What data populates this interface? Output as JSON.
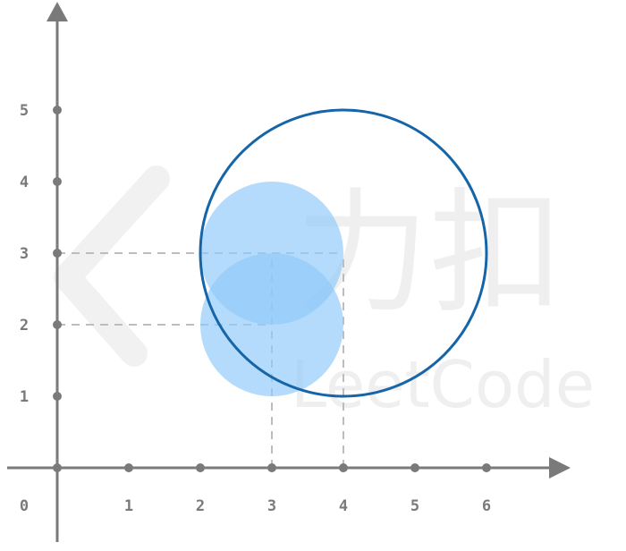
{
  "chart_data": {
    "type": "scatter",
    "x_ticks": [
      "0",
      "1",
      "2",
      "3",
      "4",
      "5",
      "6"
    ],
    "y_ticks": [
      "1",
      "2",
      "3",
      "4",
      "5"
    ],
    "x_range": [
      0,
      7
    ],
    "y_range": [
      0,
      6
    ],
    "filled_circles": [
      {
        "center": [
          3,
          3
        ],
        "radius": 1,
        "color": "#90caf9"
      },
      {
        "center": [
          3,
          2
        ],
        "radius": 1,
        "color": "#90caf9"
      }
    ],
    "outline_circle": {
      "center": [
        4,
        3
      ],
      "radius": 2,
      "color": "#1565a8"
    },
    "dashed_guides": [
      {
        "from": [
          0,
          3
        ],
        "to": [
          4,
          3
        ]
      },
      {
        "from": [
          0,
          2
        ],
        "to": [
          3,
          2
        ]
      },
      {
        "from": [
          3,
          0
        ],
        "to": [
          3,
          3
        ]
      },
      {
        "from": [
          4,
          0
        ],
        "to": [
          4,
          3
        ]
      }
    ],
    "axis_color": "#7a7a7a",
    "guide_color": "#bdbdbd"
  },
  "watermark": {
    "cjk": "力扣",
    "latin": "LeetCode"
  }
}
